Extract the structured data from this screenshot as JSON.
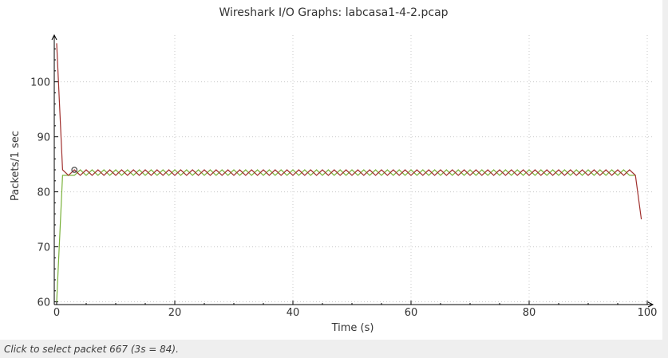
{
  "window": {
    "status_text": "Click to select packet 667 (3s = 84)."
  },
  "chart_data": {
    "type": "line",
    "title": "Wireshark I/O Graphs: labcasa1-4-2.pcap",
    "xlabel": "Time (s)",
    "ylabel": "Packets/1 sec",
    "xlim": [
      0,
      100
    ],
    "ylim": [
      59.5,
      108.5
    ],
    "x_ticks": [
      0,
      20,
      40,
      60,
      80,
      100
    ],
    "y_ticks": [
      60,
      70,
      80,
      90,
      100
    ],
    "grid": true,
    "series": [
      {
        "color": "#a0302e",
        "x": [
          0,
          1,
          2,
          3,
          4,
          5,
          6,
          7,
          8,
          9,
          10,
          11,
          12,
          13,
          14,
          15,
          16,
          17,
          18,
          19,
          20,
          21,
          22,
          23,
          24,
          25,
          26,
          27,
          28,
          29,
          30,
          31,
          32,
          33,
          34,
          35,
          36,
          37,
          38,
          39,
          40,
          41,
          42,
          43,
          44,
          45,
          46,
          47,
          48,
          49,
          50,
          51,
          52,
          53,
          54,
          55,
          56,
          57,
          58,
          59,
          60,
          61,
          62,
          63,
          64,
          65,
          66,
          67,
          68,
          69,
          70,
          71,
          72,
          73,
          74,
          75,
          76,
          77,
          78,
          79,
          80,
          81,
          82,
          83,
          84,
          85,
          86,
          87,
          88,
          89,
          90,
          91,
          92,
          93,
          94,
          95,
          96,
          97,
          98,
          99
        ],
        "y": [
          107,
          84,
          83,
          84,
          83,
          84,
          83,
          84,
          83,
          84,
          83,
          84,
          83,
          84,
          83,
          84,
          83,
          84,
          83,
          84,
          83,
          84,
          83,
          84,
          83,
          84,
          83,
          84,
          83,
          84,
          83,
          84,
          83,
          84,
          83,
          84,
          83,
          84,
          83,
          84,
          83,
          84,
          83,
          84,
          83,
          84,
          83,
          84,
          83,
          84,
          83,
          84,
          83,
          84,
          83,
          84,
          83,
          84,
          83,
          84,
          83,
          84,
          83,
          84,
          83,
          84,
          83,
          84,
          83,
          84,
          83,
          84,
          83,
          84,
          83,
          84,
          83,
          84,
          83,
          84,
          83,
          84,
          83,
          84,
          83,
          84,
          83,
          84,
          83,
          84,
          83,
          84,
          83,
          84,
          83,
          84,
          83,
          84,
          83,
          75
        ]
      },
      {
        "color": "#79b13a",
        "x": [
          0,
          1,
          2,
          3,
          4,
          5,
          6,
          7,
          8,
          9,
          10,
          11,
          12,
          13,
          14,
          15,
          16,
          17,
          18,
          19,
          20,
          21,
          22,
          23,
          24,
          25,
          26,
          27,
          28,
          29,
          30,
          31,
          32,
          33,
          34,
          35,
          36,
          37,
          38,
          39,
          40,
          41,
          42,
          43,
          44,
          45,
          46,
          47,
          48,
          49,
          50,
          51,
          52,
          53,
          54,
          55,
          56,
          57,
          58,
          59,
          60,
          61,
          62,
          63,
          64,
          65,
          66,
          67,
          68,
          69,
          70,
          71,
          72,
          73,
          74,
          75,
          76,
          77,
          78,
          79,
          80,
          81,
          82,
          83,
          84,
          85,
          86,
          87,
          88,
          89,
          90,
          91,
          92,
          93,
          94,
          95,
          96,
          97,
          98
        ],
        "y": [
          60,
          83,
          83,
          83,
          84,
          83,
          84,
          83,
          84,
          83,
          84,
          83,
          84,
          83,
          84,
          83,
          84,
          83,
          84,
          83,
          84,
          83,
          84,
          83,
          84,
          83,
          84,
          83,
          84,
          83,
          84,
          83,
          84,
          83,
          84,
          83,
          84,
          83,
          84,
          83,
          84,
          83,
          84,
          83,
          84,
          83,
          84,
          83,
          84,
          83,
          84,
          83,
          84,
          83,
          84,
          83,
          84,
          83,
          84,
          83,
          84,
          83,
          84,
          83,
          84,
          83,
          84,
          83,
          84,
          83,
          84,
          83,
          84,
          83,
          84,
          83,
          84,
          83,
          84,
          83,
          84,
          83,
          84,
          83,
          84,
          83,
          84,
          83,
          84,
          83,
          84,
          83,
          84,
          83,
          84,
          83,
          84,
          83,
          83
        ]
      }
    ],
    "selected_point": {
      "x": 3,
      "y": 84
    }
  }
}
